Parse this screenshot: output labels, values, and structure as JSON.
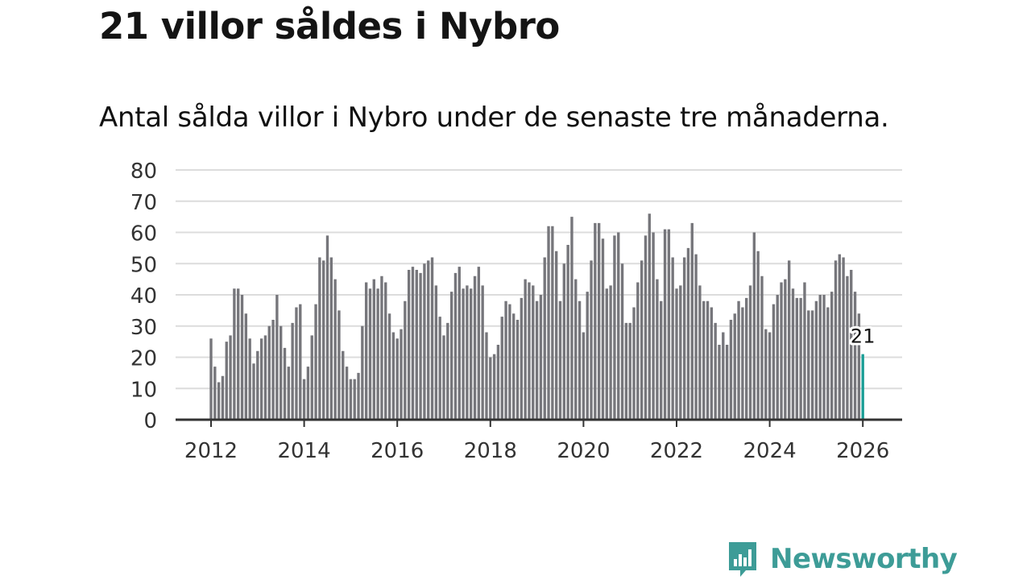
{
  "header": {
    "title": "21 villor såldes i Nybro",
    "subtitle": "Antal sålda villor i Nybro under de senaste tre månaderna."
  },
  "brand": {
    "name": "Newsworthy",
    "icon": "newsworthy-logo-icon"
  },
  "colors": {
    "bar": "#76767b",
    "highlight": "#1a9e96",
    "grid": "#dcdcdc",
    "axis": "#333333",
    "brand": "#3d9c97"
  },
  "chart_data": {
    "type": "bar",
    "title": "21 villor såldes i Nybro",
    "subtitle": "Antal sålda villor i Nybro under de senaste tre månaderna.",
    "xlabel": "",
    "ylabel": "",
    "ylim": [
      0,
      80
    ],
    "yticks": [
      0,
      10,
      20,
      30,
      40,
      50,
      60,
      70,
      80
    ],
    "xticks": [
      "2012",
      "2014",
      "2016",
      "2018",
      "2020",
      "2022",
      "2024",
      "2026"
    ],
    "start": "2012-01",
    "end": "2026-02",
    "grid": true,
    "highlight_label": "21",
    "values": [
      26,
      17,
      12,
      14,
      25,
      27,
      42,
      42,
      40,
      34,
      26,
      18,
      22,
      26,
      27,
      30,
      32,
      40,
      30,
      23,
      17,
      31,
      36,
      37,
      13,
      17,
      27,
      37,
      52,
      51,
      59,
      52,
      45,
      35,
      22,
      17,
      13,
      13,
      15,
      30,
      44,
      42,
      45,
      42,
      46,
      44,
      34,
      28,
      26,
      29,
      38,
      48,
      49,
      48,
      47,
      50,
      51,
      52,
      43,
      33,
      27,
      31,
      41,
      47,
      49,
      42,
      43,
      42,
      46,
      49,
      43,
      28,
      20,
      21,
      24,
      33,
      38,
      37,
      34,
      32,
      39,
      45,
      44,
      43,
      38,
      40,
      52,
      62,
      62,
      54,
      38,
      50,
      56,
      65,
      45,
      38,
      28,
      41,
      51,
      63,
      63,
      58,
      42,
      43,
      59,
      60,
      50,
      31,
      31,
      36,
      44,
      51,
      59,
      66,
      60,
      45,
      38,
      61,
      61,
      52,
      42,
      43,
      52,
      55,
      63,
      53,
      43,
      38,
      38,
      36,
      31,
      24,
      28,
      24,
      32,
      34,
      38,
      36,
      39,
      43,
      60,
      54,
      46,
      29,
      28,
      37,
      40,
      44,
      45,
      51,
      42,
      39,
      39,
      44,
      35,
      35,
      38,
      40,
      40,
      36,
      41,
      51,
      53,
      52,
      46,
      48,
      41,
      34,
      21
    ]
  }
}
